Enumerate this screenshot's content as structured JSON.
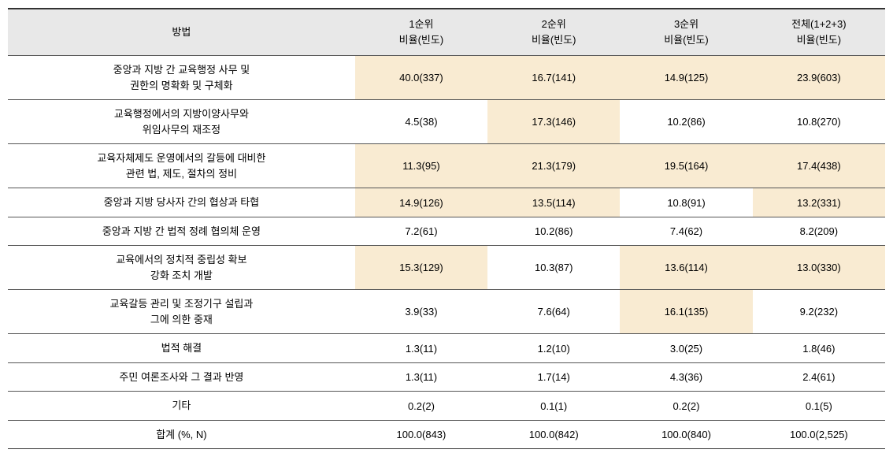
{
  "table": {
    "headers": {
      "method": "방법",
      "rank1_line1": "1순위",
      "rank1_line2": "비율(빈도)",
      "rank2_line1": "2순위",
      "rank2_line2": "비율(빈도)",
      "rank3_line1": "3순위",
      "rank3_line2": "비율(빈도)",
      "total_line1": "전체(1+2+3)",
      "total_line2": "비율(빈도)"
    },
    "rows": [
      {
        "method_line1": "중앙과 지방 간 교육행정 사무 및",
        "method_line2": "권한의 명확화 및 구체화",
        "rank1": {
          "value": "40.0(337)",
          "highlight": true
        },
        "rank2": {
          "value": "16.7(141)",
          "highlight": true
        },
        "rank3": {
          "value": "14.9(125)",
          "highlight": true
        },
        "total": {
          "value": "23.9(603)",
          "highlight": true
        }
      },
      {
        "method_line1": "교육행정에서의 지방이양사무와",
        "method_line2": "위임사무의 재조정",
        "rank1": {
          "value": "4.5(38)",
          "highlight": false
        },
        "rank2": {
          "value": "17.3(146)",
          "highlight": true
        },
        "rank3": {
          "value": "10.2(86)",
          "highlight": false
        },
        "total": {
          "value": "10.8(270)",
          "highlight": false
        }
      },
      {
        "method_line1": "교육자체제도 운영에서의 갈등에 대비한",
        "method_line2": "관련 법, 제도, 절차의 정비",
        "rank1": {
          "value": "11.3(95)",
          "highlight": true
        },
        "rank2": {
          "value": "21.3(179)",
          "highlight": true
        },
        "rank3": {
          "value": "19.5(164)",
          "highlight": true
        },
        "total": {
          "value": "17.4(438)",
          "highlight": true
        }
      },
      {
        "method_line1": "중앙과 지방 당사자 간의 협상과 타협",
        "method_line2": "",
        "rank1": {
          "value": "14.9(126)",
          "highlight": true
        },
        "rank2": {
          "value": "13.5(114)",
          "highlight": true
        },
        "rank3": {
          "value": "10.8(91)",
          "highlight": false
        },
        "total": {
          "value": "13.2(331)",
          "highlight": true
        }
      },
      {
        "method_line1": "중앙과 지방 간 법적 정례 협의체 운영",
        "method_line2": "",
        "rank1": {
          "value": "7.2(61)",
          "highlight": false
        },
        "rank2": {
          "value": "10.2(86)",
          "highlight": false
        },
        "rank3": {
          "value": "7.4(62)",
          "highlight": false
        },
        "total": {
          "value": "8.2(209)",
          "highlight": false
        }
      },
      {
        "method_line1": "교육에서의 정치적 중립성 확보",
        "method_line2": "강화 조치 개발",
        "rank1": {
          "value": "15.3(129)",
          "highlight": true
        },
        "rank2": {
          "value": "10.3(87)",
          "highlight": false
        },
        "rank3": {
          "value": "13.6(114)",
          "highlight": true
        },
        "total": {
          "value": "13.0(330)",
          "highlight": true
        }
      },
      {
        "method_line1": "교육갈등 관리 및 조정기구 설립과",
        "method_line2": "그에 의한 중재",
        "rank1": {
          "value": "3.9(33)",
          "highlight": false
        },
        "rank2": {
          "value": "7.6(64)",
          "highlight": false
        },
        "rank3": {
          "value": "16.1(135)",
          "highlight": true
        },
        "total": {
          "value": "9.2(232)",
          "highlight": false
        }
      },
      {
        "method_line1": "법적 해결",
        "method_line2": "",
        "rank1": {
          "value": "1.3(11)",
          "highlight": false
        },
        "rank2": {
          "value": "1.2(10)",
          "highlight": false
        },
        "rank3": {
          "value": "3.0(25)",
          "highlight": false
        },
        "total": {
          "value": "1.8(46)",
          "highlight": false
        }
      },
      {
        "method_line1": "주민 여론조사와 그 결과 반영",
        "method_line2": "",
        "rank1": {
          "value": "1.3(11)",
          "highlight": false
        },
        "rank2": {
          "value": "1.7(14)",
          "highlight": false
        },
        "rank3": {
          "value": "4.3(36)",
          "highlight": false
        },
        "total": {
          "value": "2.4(61)",
          "highlight": false
        }
      },
      {
        "method_line1": "기타",
        "method_line2": "",
        "rank1": {
          "value": "0.2(2)",
          "highlight": false
        },
        "rank2": {
          "value": "0.1(1)",
          "highlight": false
        },
        "rank3": {
          "value": "0.2(2)",
          "highlight": false
        },
        "total": {
          "value": "0.1(5)",
          "highlight": false
        }
      },
      {
        "method_line1": "합계 (%, N)",
        "method_line2": "",
        "rank1": {
          "value": "100.0(843)",
          "highlight": false
        },
        "rank2": {
          "value": "100.0(842)",
          "highlight": false
        },
        "rank3": {
          "value": "100.0(840)",
          "highlight": false
        },
        "total": {
          "value": "100.0(2,525)",
          "highlight": false
        }
      }
    ]
  }
}
